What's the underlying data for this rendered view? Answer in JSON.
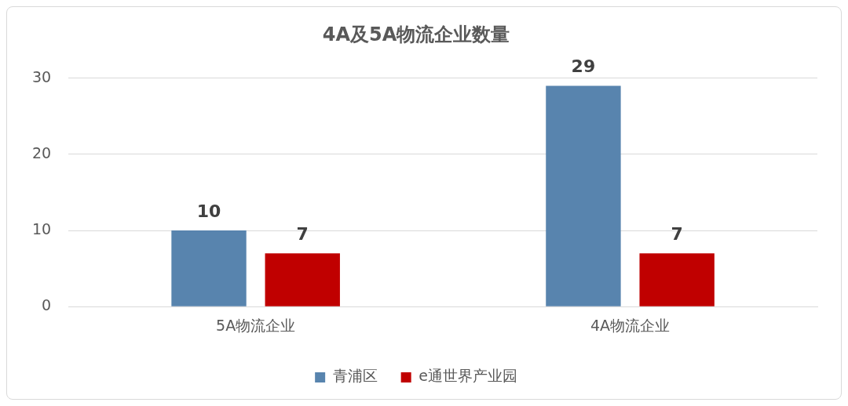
{
  "chart_data": {
    "type": "bar",
    "title": "4A及5A物流企业数量",
    "categories": [
      "5A物流企业",
      "4A物流企业"
    ],
    "series": [
      {
        "name": "青浦区",
        "color": "#5884ae",
        "values": [
          10,
          29
        ]
      },
      {
        "name": "e通世界产业园",
        "color": "#c00000",
        "values": [
          7,
          7
        ]
      }
    ],
    "ylim": [
      0,
      30
    ],
    "yticks": [
      0,
      10,
      20,
      30
    ],
    "grid": "y",
    "legend": "bottom",
    "data_labels": true
  }
}
